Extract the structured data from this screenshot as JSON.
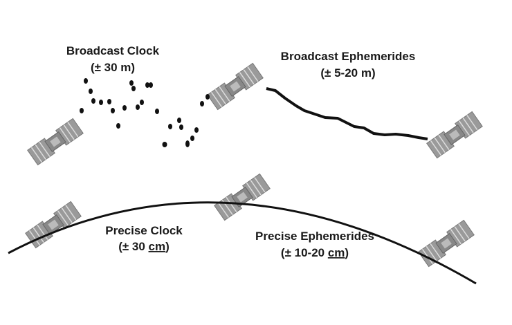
{
  "labels": {
    "broadcast_clock": {
      "title": "Broadcast Clock",
      "accuracy": "(± 30 m)"
    },
    "broadcast_ephemerides": {
      "title": "Broadcast Ephemerides",
      "accuracy": "(± 5-20 m)"
    },
    "precise_clock": {
      "title": "Precise Clock",
      "accuracy": {
        "prefix": "(± 30 ",
        "unit": "cm",
        "suffix": ")"
      }
    },
    "precise_ephemerides": {
      "title": "Precise Ephemerides",
      "accuracy": {
        "prefix": "(± 10-20 ",
        "unit": "cm",
        "suffix": ")"
      }
    }
  }
}
